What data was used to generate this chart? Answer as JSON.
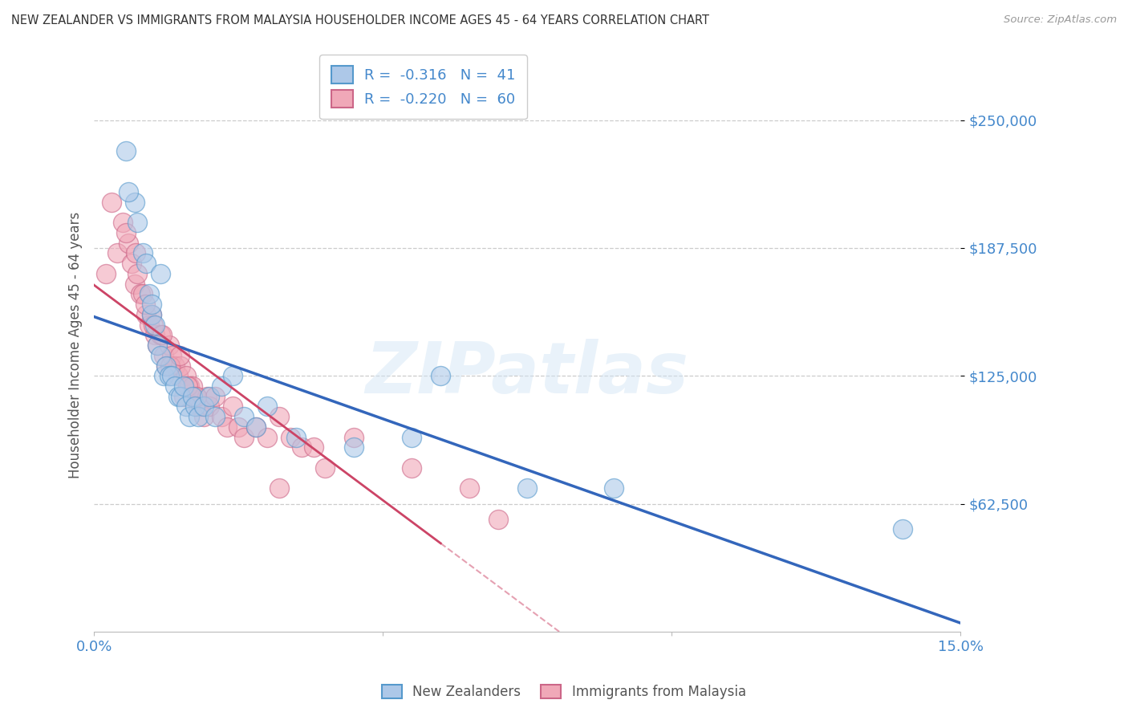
{
  "title": "NEW ZEALANDER VS IMMIGRANTS FROM MALAYSIA HOUSEHOLDER INCOME AGES 45 - 64 YEARS CORRELATION CHART",
  "source": "Source: ZipAtlas.com",
  "ylabel": "Householder Income Ages 45 - 64 years",
  "xlim": [
    0.0,
    15.0
  ],
  "ylim": [
    0,
    280000
  ],
  "yticks": [
    62500,
    125000,
    187500,
    250000
  ],
  "ytick_labels": [
    "$62,500",
    "$125,000",
    "$187,500",
    "$250,000"
  ],
  "watermark_text": "ZIPatlas",
  "legend_nz_r": "-0.316",
  "legend_nz_n": "41",
  "legend_im_r": "-0.220",
  "legend_im_n": "60",
  "nz_fill_color": "#adc8e8",
  "nz_edge_color": "#5599cc",
  "im_fill_color": "#f0a8b8",
  "im_edge_color": "#cc6688",
  "nz_line_color": "#3366bb",
  "im_line_color": "#cc4466",
  "background_color": "#ffffff",
  "grid_color": "#cccccc",
  "title_color": "#333333",
  "axis_label_color": "#555555",
  "tick_label_color": "#4488cc",
  "nz_scatter_x": [
    0.55,
    0.7,
    0.75,
    0.85,
    0.9,
    0.95,
    1.0,
    1.05,
    1.1,
    1.15,
    1.2,
    1.25,
    1.3,
    1.35,
    1.4,
    1.45,
    1.5,
    1.55,
    1.6,
    1.65,
    1.7,
    1.75,
    1.8,
    1.9,
    2.0,
    2.1,
    2.2,
    2.4,
    2.6,
    3.0,
    3.5,
    4.5,
    5.5,
    6.0,
    7.5,
    9.0,
    14.0,
    0.6,
    1.0,
    2.8,
    1.15
  ],
  "nz_scatter_y": [
    235000,
    210000,
    200000,
    185000,
    180000,
    165000,
    155000,
    150000,
    140000,
    135000,
    125000,
    130000,
    125000,
    125000,
    120000,
    115000,
    115000,
    120000,
    110000,
    105000,
    115000,
    110000,
    105000,
    110000,
    115000,
    105000,
    120000,
    125000,
    105000,
    110000,
    95000,
    90000,
    95000,
    125000,
    70000,
    70000,
    50000,
    215000,
    160000,
    100000,
    175000
  ],
  "im_scatter_x": [
    0.2,
    0.3,
    0.4,
    0.5,
    0.6,
    0.65,
    0.7,
    0.75,
    0.8,
    0.85,
    0.9,
    0.95,
    1.0,
    1.05,
    1.1,
    1.15,
    1.2,
    1.25,
    1.3,
    1.35,
    1.4,
    1.45,
    1.5,
    1.55,
    1.6,
    1.65,
    1.7,
    1.75,
    1.8,
    1.85,
    1.9,
    1.95,
    2.0,
    2.1,
    2.2,
    2.3,
    2.4,
    2.5,
    2.6,
    2.8,
    3.0,
    3.2,
    3.4,
    3.6,
    3.8,
    4.0,
    4.5,
    5.5,
    6.5,
    7.0,
    0.55,
    0.72,
    0.88,
    1.02,
    1.18,
    1.32,
    1.48,
    1.62,
    1.78,
    3.2
  ],
  "im_scatter_y": [
    175000,
    210000,
    185000,
    200000,
    190000,
    180000,
    170000,
    175000,
    165000,
    165000,
    155000,
    150000,
    155000,
    145000,
    140000,
    145000,
    135000,
    130000,
    140000,
    135000,
    130000,
    125000,
    130000,
    115000,
    125000,
    120000,
    120000,
    115000,
    110000,
    110000,
    105000,
    115000,
    110000,
    115000,
    105000,
    100000,
    110000,
    100000,
    95000,
    100000,
    95000,
    105000,
    95000,
    90000,
    90000,
    80000,
    95000,
    80000,
    70000,
    55000,
    195000,
    185000,
    160000,
    150000,
    145000,
    130000,
    135000,
    120000,
    115000,
    70000
  ]
}
